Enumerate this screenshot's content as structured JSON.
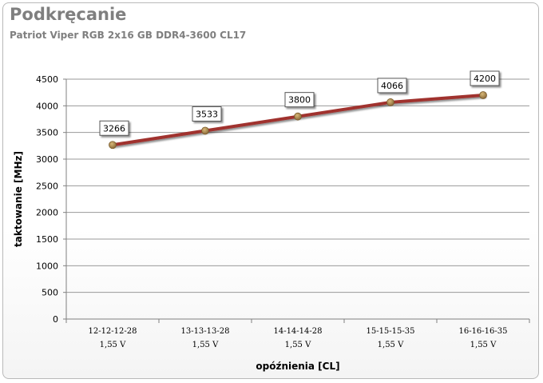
{
  "title": "Podkręcanie",
  "subtitle": "Patriot Viper RGB 2x16 GB DDR4-3600 CL17",
  "chart_data": {
    "type": "line",
    "categories": [
      [
        "12-12-12-28",
        "1,55 V"
      ],
      [
        "13-13-13-28",
        "1,55 V"
      ],
      [
        "14-14-14-28",
        "1,55 V"
      ],
      [
        "15-15-15-35",
        "1,55 V"
      ],
      [
        "16-16-16-35",
        "1,55 V"
      ]
    ],
    "series": [
      {
        "values": [
          3266,
          3533,
          3800,
          4066,
          4200
        ]
      }
    ],
    "ylabel": "taktowanie [MHz]",
    "xlabel": "opóźnienia [CL]",
    "ylim": [
      0,
      4500
    ],
    "yticks": [
      0,
      500,
      1000,
      1500,
      2000,
      2500,
      3000,
      3500,
      4000,
      4500
    ],
    "grid": true,
    "legend": "none",
    "colors": {
      "line": "#a0322f",
      "marker": "#a8824a",
      "grid": "#9a9a9a"
    }
  }
}
